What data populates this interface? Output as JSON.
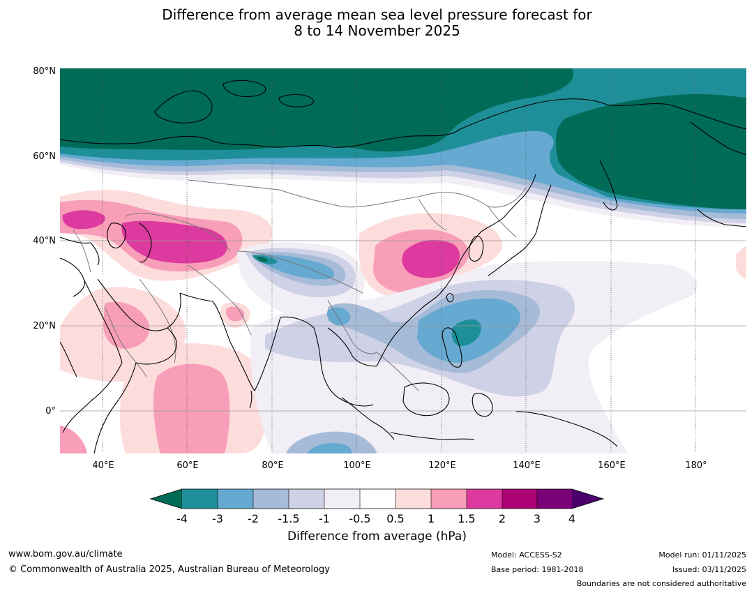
{
  "title": {
    "line1": "Difference from average mean sea level pressure forecast for",
    "line2": "8 to 14 November 2025"
  },
  "map": {
    "lat_labels": [
      "80°N",
      "60°N",
      "40°N",
      "20°N",
      "0°"
    ],
    "lon_labels": [
      "40°E",
      "60°E",
      "80°E",
      "100°E",
      "120°E",
      "140°E",
      "160°E",
      "180°"
    ],
    "lon_range": [
      30,
      192
    ],
    "lat_range": [
      -10,
      80
    ],
    "colors": {
      "lt_neg4": "#006b57",
      "neg4_neg3": "#1e8f98",
      "neg3_neg2": "#66a9d1",
      "neg2_neg15": "#a6bbd8",
      "neg15_neg1": "#cfd1e6",
      "neg1_neg05": "#f2eef5",
      "neg05_05": "#ffffff",
      "p05_1": "#fddcdc",
      "p1_15": "#f89eb8",
      "p15_2": "#dc3a9e",
      "p2_3": "#ad0077",
      "p3_4": "#7a0177",
      "gt4": "#49006a"
    }
  },
  "colorbar": {
    "ticks": [
      "-4",
      "-3",
      "-2",
      "-1.5",
      "-1",
      "-0.5",
      "0.5",
      "1",
      "1.5",
      "2",
      "3",
      "4"
    ],
    "title": "Difference from average (hPa)"
  },
  "footer": {
    "website": "www.bom.gov.au/climate",
    "copyright": "© Commonwealth of Australia 2025, Australian Bureau of Meteorology",
    "model": "Model: ACCESS-S2",
    "base_period": "Base period: 1981-2018",
    "model_run": "Model run: 01/11/2025",
    "issued": "Issued: 03/11/2025",
    "disclaimer": "Boundaries are not considered authoritative"
  }
}
